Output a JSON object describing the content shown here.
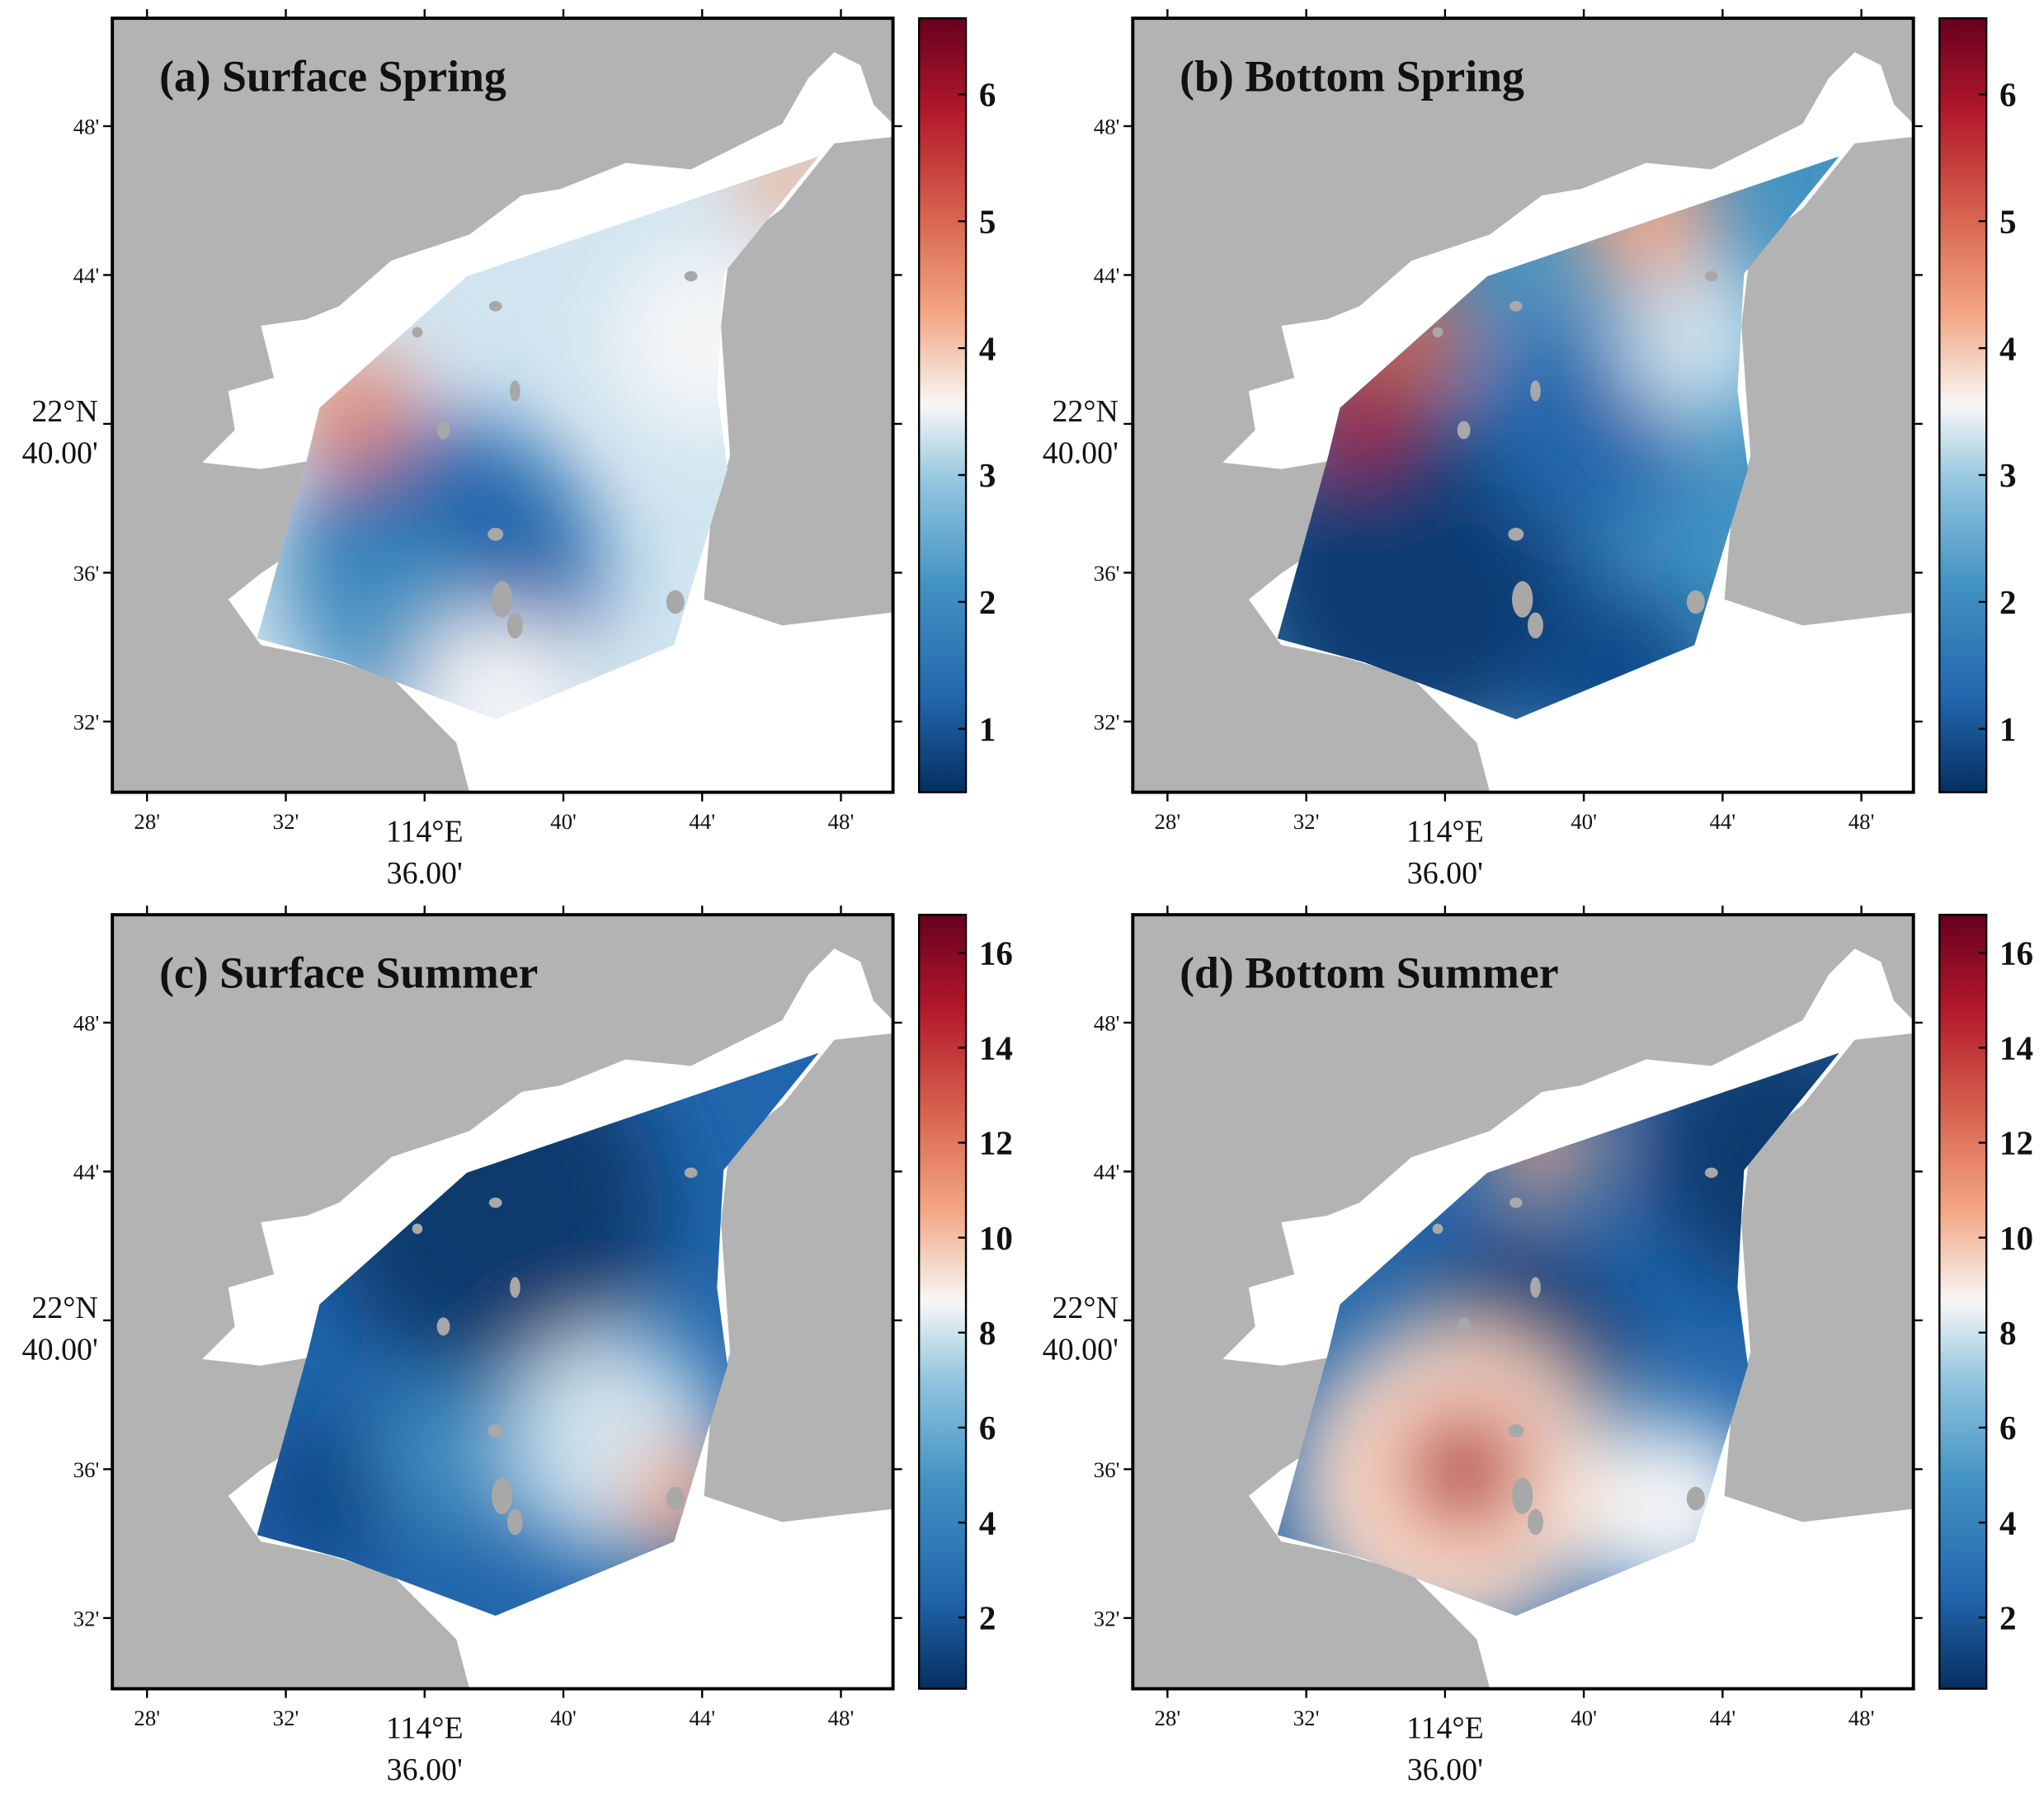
{
  "panels": [
    {
      "title": "(a) Surface Spring",
      "colorbar": {
        "lim": [
          0.5,
          6.6
        ],
        "ticks": [
          1,
          2,
          3,
          4,
          5,
          6
        ]
      }
    },
    {
      "title": "(b) Bottom Spring",
      "colorbar": {
        "lim": [
          0.5,
          6.6
        ],
        "ticks": [
          1,
          2,
          3,
          4,
          5,
          6
        ]
      }
    },
    {
      "title": "(c) Surface Summer",
      "colorbar": {
        "lim": [
          0.5,
          16.8
        ],
        "ticks": [
          2,
          4,
          6,
          8,
          10,
          12,
          14,
          16
        ]
      }
    },
    {
      "title": "(d) Bottom Summer",
      "colorbar": {
        "lim": [
          0.5,
          16.8
        ],
        "ticks": [
          2,
          4,
          6,
          8,
          10,
          12,
          14,
          16
        ]
      }
    }
  ],
  "xlim": [
    27,
    49.5
  ],
  "ylim": [
    30.1,
    50.9
  ],
  "xticks": [
    {
      "value": 28,
      "label": "28'"
    },
    {
      "value": 32,
      "label": "32'"
    },
    {
      "value": 36,
      "label": "36.00'",
      "degree": "114°E"
    },
    {
      "value": 40,
      "label": "40'"
    },
    {
      "value": 44,
      "label": "44'"
    },
    {
      "value": 48,
      "label": "48'"
    }
  ],
  "yticks": [
    {
      "value": 32,
      "label": "32'"
    },
    {
      "value": 36,
      "label": "36'"
    },
    {
      "value": 40,
      "label": "40.00'",
      "degree": "22°N"
    },
    {
      "value": 44,
      "label": "44'"
    },
    {
      "value": 48,
      "label": "48'"
    }
  ]
}
